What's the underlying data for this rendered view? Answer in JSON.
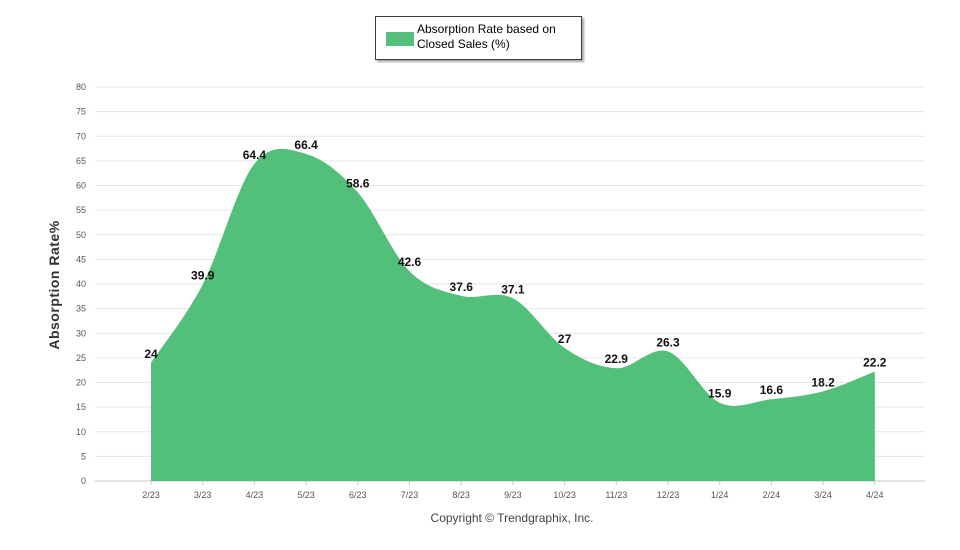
{
  "chart_data": {
    "type": "area",
    "categories": [
      "2/23",
      "3/23",
      "4/23",
      "5/23",
      "6/23",
      "7/23",
      "8/23",
      "9/23",
      "10/23",
      "11/23",
      "12/23",
      "1/24",
      "2/24",
      "3/24",
      "4/24"
    ],
    "series": [
      {
        "name": "Absorption Rate based on Closed Sales (%)",
        "values": [
          24,
          39.9,
          64.4,
          66.4,
          58.6,
          42.6,
          37.6,
          37.1,
          27,
          22.9,
          26.3,
          15.9,
          16.6,
          18.2,
          22.2
        ],
        "color": "#52c07a"
      }
    ],
    "ylabel": "Absorption Rate%",
    "xlabel": "",
    "ylim": [
      0,
      80
    ],
    "yticks": [
      0,
      5,
      10,
      15,
      20,
      25,
      30,
      35,
      40,
      45,
      50,
      55,
      60,
      65,
      70,
      75,
      80
    ],
    "grid": true,
    "legend": "top-center"
  },
  "footer": "Copyright © Trendgraphix, Inc."
}
